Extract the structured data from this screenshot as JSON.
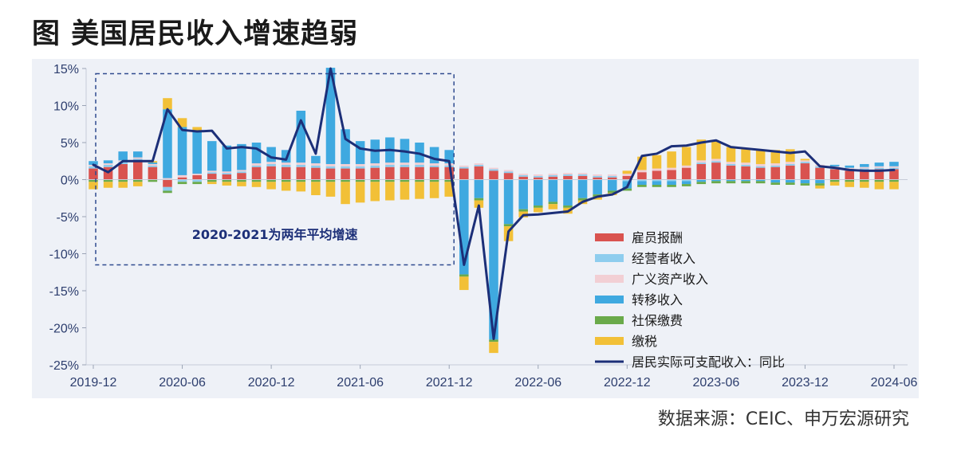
{
  "title": "图  美国居民收入增速趋弱",
  "source": "数据来源：CEIC、申万宏源研究",
  "chart_data": {
    "type": "bar",
    "stacked": true,
    "grid": false,
    "legend_position": "bottom-right",
    "annotation": {
      "text": "2020-2021为两年平均增速",
      "x_range": [
        "2019-12",
        "2021-12"
      ],
      "y_range": [
        -11.5,
        14.3
      ]
    },
    "ylim": [
      -25,
      15
    ],
    "y_ticks": [
      15,
      10,
      5,
      0,
      -5,
      -10,
      -15,
      -20,
      -25
    ],
    "y_tick_labels": [
      "15%",
      "10%",
      "5%",
      "0%",
      "-5%",
      "-10%",
      "-15%",
      "-20%",
      "-25%"
    ],
    "x_ticks": [
      "2019-12",
      "2020-06",
      "2020-12",
      "2021-06",
      "2021-12",
      "2022-06",
      "2022-12",
      "2023-06",
      "2023-12",
      "2024-06"
    ],
    "categories": [
      "2019-12",
      "2020-01",
      "2020-02",
      "2020-03",
      "2020-04",
      "2020-05",
      "2020-06",
      "2020-07",
      "2020-08",
      "2020-09",
      "2020-10",
      "2020-11",
      "2020-12",
      "2021-01",
      "2021-02",
      "2021-03",
      "2021-04",
      "2021-05",
      "2021-06",
      "2021-07",
      "2021-08",
      "2021-09",
      "2021-10",
      "2021-11",
      "2021-12",
      "2022-01",
      "2022-02",
      "2022-03",
      "2022-04",
      "2022-05",
      "2022-06",
      "2022-07",
      "2022-08",
      "2022-09",
      "2022-10",
      "2022-11",
      "2022-12",
      "2023-01",
      "2023-02",
      "2023-03",
      "2023-04",
      "2023-05",
      "2023-06",
      "2023-07",
      "2023-08",
      "2023-09",
      "2023-10",
      "2023-11",
      "2023-12",
      "2024-01",
      "2024-02",
      "2024-03",
      "2024-04",
      "2024-05",
      "2024-06"
    ],
    "series": [
      {
        "name": "雇员报酬",
        "color": "#d9534f",
        "values": [
          1.5,
          1.7,
          2.1,
          2.5,
          1.7,
          -1.0,
          0.3,
          0.6,
          0.8,
          0.7,
          0.9,
          1.7,
          1.8,
          1.7,
          1.7,
          1.6,
          1.5,
          1.5,
          1.5,
          1.6,
          1.7,
          1.7,
          1.7,
          1.7,
          1.7,
          1.5,
          1.8,
          1.2,
          0.9,
          0.4,
          0.3,
          0.4,
          0.5,
          0.5,
          0.3,
          0.3,
          0.5,
          1.0,
          1.2,
          1.3,
          1.6,
          2.1,
          2.3,
          1.9,
          1.8,
          1.6,
          1.7,
          1.9,
          2.2,
          1.6,
          1.4,
          1.2,
          1.3,
          1.4,
          1.4
        ]
      },
      {
        "name": "经营者收入",
        "color": "#8ecdee",
        "values": [
          0.3,
          0.3,
          0.3,
          0.3,
          0.2,
          -0.5,
          -0.3,
          -0.3,
          0.2,
          0.2,
          0.2,
          0.2,
          0.3,
          0.3,
          0.3,
          0.3,
          0.3,
          0.3,
          0.3,
          0.3,
          0.3,
          0.3,
          0.3,
          0.2,
          0.2,
          0.2,
          0.2,
          0.2,
          0.2,
          0.2,
          0.2,
          0.2,
          0.2,
          0.2,
          0.2,
          0.2,
          -0.2,
          -0.2,
          -0.2,
          -0.2,
          -0.2,
          0.2,
          0.2,
          0.2,
          0.2,
          0.2,
          0.2,
          0.2,
          0.2,
          0.2,
          0.2,
          0.2,
          0.2,
          0.2,
          0.2
        ]
      },
      {
        "name": "广义资产收入",
        "color": "#f2cfd4",
        "values": [
          0.2,
          0.2,
          0.2,
          0.2,
          0.2,
          0.2,
          0.3,
          0.2,
          0.2,
          0.2,
          0.2,
          0.3,
          0.3,
          0.3,
          0.3,
          0.3,
          0.3,
          0.3,
          0.3,
          0.3,
          0.3,
          0.3,
          0.3,
          0.3,
          0.3,
          0.2,
          0.2,
          0.2,
          0.2,
          0.2,
          0.2,
          0.2,
          0.2,
          0.2,
          0.2,
          0.2,
          0.3,
          0.3,
          0.3,
          0.3,
          0.3,
          0.3,
          0.3,
          0.3,
          0.3,
          0.3,
          0.3,
          0.3,
          0.2,
          0.2,
          0.2,
          0.2,
          0.2,
          0.2,
          0.2
        ]
      },
      {
        "name": "转移收入",
        "color": "#3fa9e0",
        "values": [
          0.5,
          0.4,
          1.2,
          0.8,
          0.2,
          9.3,
          6.5,
          5.8,
          4.0,
          3.5,
          3.5,
          2.8,
          2.0,
          1.7,
          7.0,
          1.0,
          13.0,
          4.7,
          3.1,
          3.2,
          3.4,
          3.2,
          2.7,
          2.2,
          1.8,
          -12.8,
          -2.5,
          -21.6,
          -6.0,
          -4.0,
          -3.5,
          -3.0,
          -3.5,
          -2.5,
          -2.0,
          -1.5,
          -1.0,
          -0.5,
          -0.5,
          -0.5,
          -0.4,
          -0.3,
          -0.2,
          -0.2,
          -0.2,
          -0.2,
          -0.4,
          -0.4,
          -0.5,
          -0.5,
          0.2,
          0.3,
          0.4,
          0.5,
          0.6
        ]
      },
      {
        "name": "社保缴费",
        "color": "#6aaa4a",
        "values": [
          -0.3,
          -0.3,
          -0.3,
          -0.3,
          -0.3,
          -0.3,
          -0.3,
          -0.3,
          -0.3,
          -0.3,
          -0.3,
          -0.3,
          -0.3,
          -0.3,
          -0.3,
          -0.3,
          -0.3,
          -0.3,
          -0.3,
          -0.3,
          -0.3,
          -0.3,
          -0.3,
          -0.3,
          -0.3,
          -0.3,
          -0.3,
          -0.3,
          -0.3,
          -0.3,
          -0.3,
          -0.3,
          -0.3,
          -0.3,
          -0.3,
          -0.3,
          -0.3,
          -0.3,
          -0.3,
          -0.3,
          -0.3,
          -0.3,
          -0.3,
          -0.3,
          -0.3,
          -0.3,
          -0.3,
          -0.3,
          -0.3,
          -0.3,
          -0.3,
          -0.3,
          -0.3,
          -0.3,
          -0.3
        ]
      },
      {
        "name": "缴税",
        "color": "#f2c037",
        "values": [
          -1.0,
          -0.8,
          -0.8,
          -0.6,
          0.2,
          1.5,
          1.2,
          0.5,
          -0.3,
          -0.5,
          -0.6,
          -0.7,
          -1.0,
          -1.2,
          -1.3,
          -1.8,
          -2.0,
          -3.0,
          -2.8,
          -2.6,
          -2.5,
          -2.4,
          -2.3,
          -2.2,
          -2.0,
          -1.8,
          -1.0,
          -1.5,
          -2.0,
          -0.8,
          -0.6,
          -0.7,
          -0.8,
          -0.5,
          -0.4,
          -0.3,
          0.4,
          1.8,
          1.8,
          2.2,
          2.5,
          2.8,
          2.4,
          2.0,
          1.8,
          1.9,
          1.8,
          1.7,
          0.2,
          -0.4,
          -0.5,
          -0.7,
          -0.8,
          -1.0,
          -1.0
        ]
      }
    ],
    "line": {
      "name": "居民实际可支配收入：同比",
      "color": "#1c2f78",
      "values": [
        2.0,
        1.0,
        2.5,
        2.5,
        2.5,
        9.5,
        6.7,
        6.5,
        6.6,
        4.2,
        4.4,
        4.2,
        3.0,
        2.7,
        8.0,
        3.5,
        15.0,
        5.5,
        4.2,
        3.9,
        4.0,
        3.8,
        3.5,
        2.8,
        2.5,
        -11.5,
        -3.5,
        -21.5,
        -7.0,
        -4.8,
        -4.7,
        -4.5,
        -4.3,
        -3.0,
        -2.3,
        -2.0,
        -1.0,
        3.2,
        3.5,
        4.5,
        4.6,
        5.0,
        5.3,
        4.4,
        4.2,
        4.0,
        3.8,
        3.6,
        3.8,
        1.8,
        1.6,
        1.3,
        1.2,
        1.2,
        1.3
      ]
    }
  }
}
